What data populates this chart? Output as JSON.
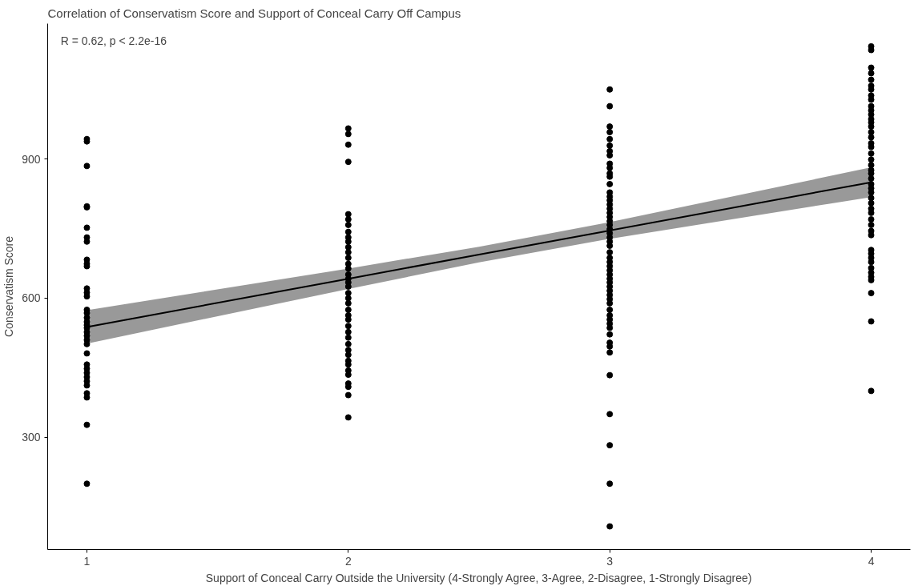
{
  "chart_data": {
    "type": "scatter",
    "title": "Correlation of Conservatism Score and Support of Conceal Carry Off Campus",
    "xlabel": "Support of Conceal Carry Outside the University (4-Strongly Agree, 3-Agree, 2-Disagree, 1-Strongly Disagree)",
    "ylabel": "Conservatism Score",
    "annotations": [
      "R = 0.62, p < 2.2e-16"
    ],
    "xlim": [
      0.85,
      4.15
    ],
    "ylim": [
      58,
      1192
    ],
    "xticks": [
      1,
      2,
      3,
      4
    ],
    "yticks": [
      300,
      600,
      900
    ],
    "grid": false,
    "marker": "circle",
    "series": [
      {
        "color": "#000000",
        "x": [
          1,
          1,
          1,
          1,
          1,
          1,
          1,
          1,
          1,
          1,
          1,
          1,
          1,
          1,
          1,
          1,
          1,
          1,
          1,
          1,
          1,
          1,
          1,
          1,
          1,
          1,
          1,
          1,
          1,
          1,
          1,
          1,
          1,
          1,
          1,
          2,
          2,
          2,
          2,
          2,
          2,
          2,
          2,
          2,
          2,
          2,
          2,
          2,
          2,
          2,
          2,
          2,
          2,
          2,
          2,
          2,
          2,
          2,
          2,
          2,
          2,
          2,
          2,
          2,
          2,
          2,
          2,
          2,
          2,
          2,
          2,
          2,
          2,
          2,
          3,
          3,
          3,
          3,
          3,
          3,
          3,
          3,
          3,
          3,
          3,
          3,
          3,
          3,
          3,
          3,
          3,
          3,
          3,
          3,
          3,
          3,
          3,
          3,
          3,
          3,
          3,
          3,
          3,
          3,
          3,
          3,
          3,
          3,
          3,
          3,
          3,
          3,
          3,
          3,
          3,
          3,
          3,
          3,
          3,
          3,
          3,
          3,
          3,
          3,
          3,
          3,
          3,
          3,
          4,
          4,
          4,
          4,
          4,
          4,
          4,
          4,
          4,
          4,
          4,
          4,
          4,
          4,
          4,
          4,
          4,
          4,
          4,
          4,
          4,
          4,
          4,
          4,
          4,
          4,
          4,
          4,
          4,
          4,
          4,
          4,
          4,
          4,
          4,
          4,
          4,
          4,
          4,
          4,
          4,
          4,
          4,
          4,
          4,
          4,
          4
        ],
        "values": [
          943,
          938,
          885,
          798,
          796,
          752,
          731,
          722,
          683,
          674,
          669,
          621,
          612,
          604,
          575,
          568,
          558,
          549,
          542,
          536,
          527,
          519,
          510,
          501,
          481,
          457,
          448,
          439,
          430,
          421,
          412,
          395,
          386,
          327,
          200,
          966,
          954,
          931,
          894,
          781,
          770,
          758,
          743,
          731,
          722,
          710,
          699,
          687,
          674,
          664,
          651,
          642,
          634,
          625,
          611,
          600,
          589,
          575,
          563,
          554,
          540,
          527,
          515,
          501,
          488,
          478,
          465,
          457,
          444,
          435,
          416,
          409,
          391,
          343,
          1050,
          1014,
          970,
          958,
          943,
          929,
          917,
          908,
          890,
          881,
          869,
          862,
          846,
          828,
          819,
          811,
          802,
          793,
          784,
          775,
          766,
          758,
          749,
          740,
          731,
          722,
          713,
          699,
          687,
          678,
          669,
          660,
          651,
          642,
          634,
          625,
          616,
          607,
          598,
          589,
          575,
          563,
          554,
          545,
          536,
          522,
          504,
          496,
          483,
          434,
          350,
          283,
          200,
          108,
          1143,
          1135,
          1097,
          1085,
          1071,
          1058,
          1050,
          1037,
          1028,
          1014,
          1005,
          996,
          986,
          979,
          970,
          958,
          947,
          934,
          926,
          912,
          899,
          887,
          876,
          869,
          858,
          846,
          837,
          828,
          816,
          805,
          793,
          784,
          770,
          758,
          745,
          736,
          704,
          696,
          687,
          678,
          665,
          655,
          646,
          639,
          611,
          550,
          400
        ]
      },
      {
        "type": "line",
        "color": "#000000",
        "line_style": "solid",
        "marker": "none",
        "x": [
          1,
          2,
          2.5,
          3,
          4
        ],
        "values": [
          538,
          642,
          694,
          746,
          850
        ],
        "lower": [
          502,
          620,
          677,
          728,
          818
        ],
        "upper": [
          574,
          664,
          711,
          764,
          882
        ]
      }
    ]
  }
}
